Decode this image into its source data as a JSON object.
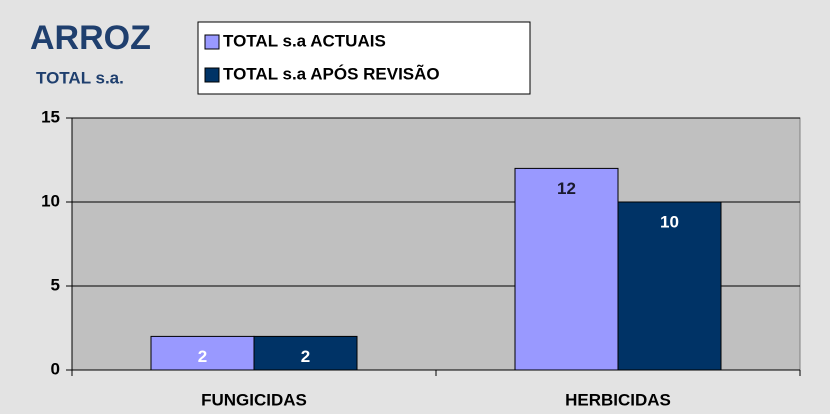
{
  "chart_data": {
    "type": "bar",
    "title": "ARROZ",
    "subtitle": "TOTAL s.a.",
    "categories": [
      "FUNGICIDAS",
      "HERBICIDAS"
    ],
    "series": [
      {
        "name": "TOTAL s.a ACTUAIS",
        "color": "#9999ff",
        "values": [
          2,
          12
        ]
      },
      {
        "name": "TOTAL s.a APÓS REVISÃO",
        "color": "#003366",
        "values": [
          2,
          10
        ]
      }
    ],
    "ylim": [
      0,
      15
    ],
    "yticks": [
      0,
      5,
      10,
      15
    ],
    "grid": true
  }
}
